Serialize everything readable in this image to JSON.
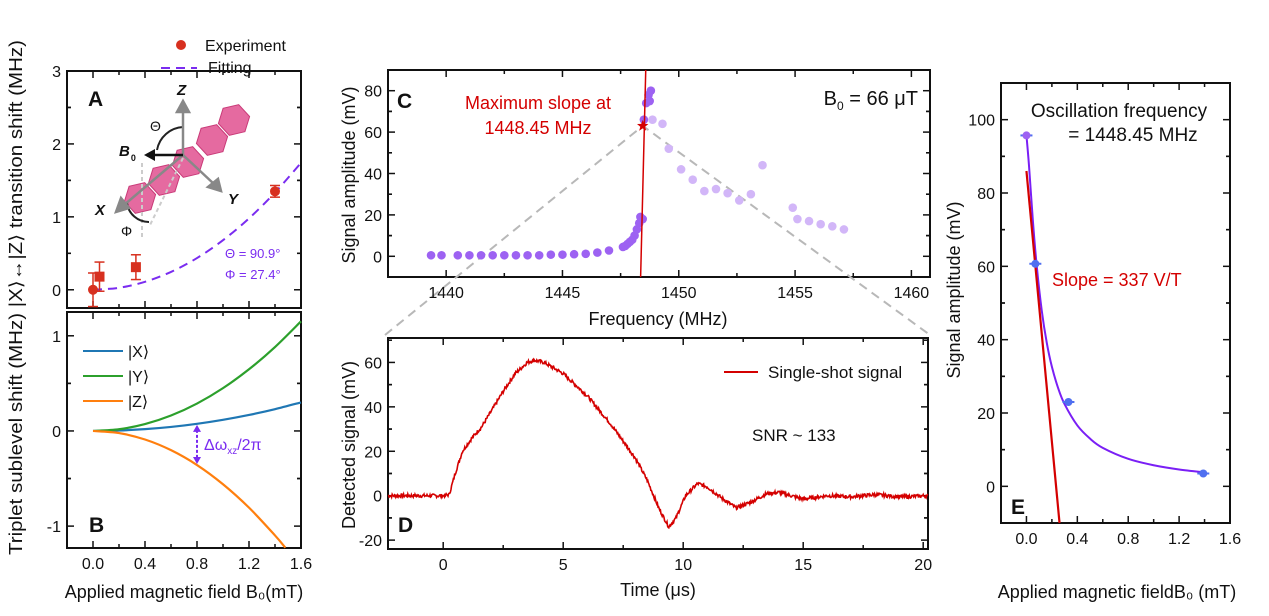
{
  "colors": {
    "experiment": "#d7301f",
    "fitting": "#7a2cf0",
    "X": "#1f77b4",
    "Y": "#2ca02c",
    "Z": "#ff7f0e",
    "slope_line": "#d40000",
    "points_dark": "#9d62f2",
    "points_light": "#d2b6f8",
    "fit_E": "#7a1ff5",
    "points_E": "#4f6ff0",
    "zoom_lines": "#b8b8b8",
    "molecule": "#e0508f"
  },
  "shared": {
    "ylabel_AB": "Triplet sublevel shift (MHz) |X⟩↔|Z⟩  transition shift (MHz)",
    "xlabel_AB": "Applied magnetic field B₀(mT)"
  },
  "chart_data": [
    {
      "id": "A",
      "panel_label": "A",
      "type": "scatter",
      "xlim": [
        -0.2,
        1.6
      ],
      "ylim": [
        -0.25,
        3
      ],
      "xticks": [
        0,
        0.4,
        0.8,
        1.2,
        1.6
      ],
      "xticklabels": [],
      "yticks": [
        0,
        1,
        2,
        3
      ],
      "yticklabels": [
        "0",
        "1",
        "2",
        "3"
      ],
      "legend": {
        "placement": "top",
        "entries": [
          "Experiment",
          "Fitting"
        ]
      },
      "series": [
        {
          "name": "Experiment",
          "kind": "points",
          "x": [
            0,
            0.05,
            0.33,
            1.4
          ],
          "y": [
            0,
            0.18,
            0.31,
            1.35
          ],
          "err": [
            0.23,
            0.2,
            0.17,
            0.08
          ],
          "marker": [
            "circle",
            "square",
            "square",
            "circle"
          ]
        },
        {
          "name": "Fitting",
          "kind": "dashed",
          "x": [
            0,
            0.2,
            0.4,
            0.6,
            0.8,
            1.0,
            1.2,
            1.4,
            1.6
          ],
          "y": [
            0,
            0.027,
            0.109,
            0.245,
            0.435,
            0.68,
            0.979,
            1.333,
            1.741
          ]
        }
      ],
      "annotations": {
        "theta": "Θ = 90.9°",
        "phi": "Φ = 27.4°"
      },
      "inset": {
        "Z": "Z",
        "Y": "Y",
        "X": "X",
        "B0": "B",
        "B0_sub": "0",
        "Theta": "Θ",
        "Phi": "Φ"
      }
    },
    {
      "id": "B",
      "panel_label": "B",
      "type": "line",
      "xlim": [
        -0.2,
        1.6
      ],
      "ylim": [
        -1.23,
        1.25
      ],
      "xticks": [
        0,
        0.4,
        0.8,
        1.2,
        1.6
      ],
      "xticklabels": [
        "0.0",
        "0.4",
        "0.8",
        "1.2",
        "1.6"
      ],
      "yticks": [
        -1,
        0,
        1
      ],
      "yticklabels": [
        "-1",
        "0",
        "1"
      ],
      "legend": {
        "placement": "top-left",
        "entries": [
          "|X⟩",
          "|Y⟩",
          "|Z⟩"
        ]
      },
      "series": [
        {
          "name": "|X⟩",
          "x": [
            0,
            0.2,
            0.4,
            0.6,
            0.8,
            1.0,
            1.2,
            1.4,
            1.6
          ],
          "y": [
            0,
            0.005,
            0.019,
            0.042,
            0.075,
            0.117,
            0.168,
            0.229,
            0.3
          ]
        },
        {
          "name": "|Y⟩",
          "x": [
            0,
            0.2,
            0.4,
            0.6,
            0.8,
            1.0,
            1.2,
            1.4,
            1.6
          ],
          "y": [
            0,
            0.018,
            0.072,
            0.162,
            0.288,
            0.45,
            0.648,
            0.882,
            1.152
          ]
        },
        {
          "name": "|Z⟩",
          "x": [
            0,
            0.2,
            0.4,
            0.6,
            0.8,
            1.0,
            1.2,
            1.4,
            1.48
          ],
          "y": [
            0,
            -0.022,
            -0.09,
            -0.202,
            -0.358,
            -0.56,
            -0.806,
            -1.098,
            -1.227
          ]
        }
      ],
      "annotation": {
        "text": "Δω",
        "sub": "xz",
        "tail": "/2π",
        "x": 0.8,
        "y_top": 0.075,
        "y_bottom": -0.358
      }
    },
    {
      "id": "C",
      "panel_label": "C",
      "type": "scatter",
      "xlim": [
        1437.5,
        1460.8
      ],
      "ylim": [
        -10,
        90
      ],
      "xticks": [
        1440,
        1445,
        1450,
        1455,
        1460
      ],
      "xticklabels": [
        "1440",
        "1445",
        "1450",
        "1455",
        "1460"
      ],
      "yticks": [
        0,
        20,
        40,
        60,
        80
      ],
      "yticklabels": [
        "0",
        "20",
        "40",
        "60",
        "80"
      ],
      "xlabel": "Frequency (MHz)",
      "ylabel": "Signal amplitude (mV)",
      "series": [
        {
          "kind": "dark",
          "x": [
            1439.35,
            1439.8,
            1440.5,
            1441,
            1441.5,
            1442,
            1442.5,
            1443,
            1443.5,
            1444,
            1444.5,
            1445,
            1445.5,
            1446,
            1446.5,
            1447,
            1447.6,
            1447.7,
            1447.8,
            1447.9,
            1448.0,
            1448.1,
            1448.2,
            1448.3,
            1448.35,
            1448.45,
            1448.5,
            1448.6,
            1448.7,
            1448.75,
            1448.8
          ],
          "y": [
            0.5,
            0.5,
            0.5,
            0.5,
            0.5,
            0.5,
            0.5,
            0.5,
            0.5,
            0.5,
            0.8,
            0.8,
            1,
            1.2,
            1.8,
            2.8,
            4.5,
            5,
            6,
            7,
            8,
            10,
            13,
            16,
            19,
            18,
            66,
            74,
            78,
            75,
            80
          ]
        },
        {
          "kind": "light",
          "x": [
            1448.87,
            1449.3,
            1449.57,
            1450.1,
            1450.6,
            1451.1,
            1451.6,
            1452.1,
            1452.6,
            1453.1,
            1453.6,
            1454.9,
            1455.1,
            1455.6,
            1456.1,
            1456.6,
            1457.1
          ],
          "y": [
            66,
            64,
            52,
            42,
            37,
            31.5,
            32.5,
            30.5,
            27,
            30,
            44,
            23.5,
            18,
            17,
            15.5,
            14.5,
            13
          ]
        }
      ],
      "max_slope": {
        "x": 1448.45,
        "y": 63,
        "line": [
          [
            1448.58,
            90
          ],
          [
            1448.36,
            -10
          ]
        ]
      },
      "annotations": {
        "max_slope_1": "Maximum slope at",
        "max_slope_2": "1448.45 MHz",
        "field": "B",
        "field_sub": "0",
        "field_tail": " = 66 μT"
      }
    },
    {
      "id": "D",
      "panel_label": "D",
      "type": "line",
      "xlim": [
        -2.3,
        20.2
      ],
      "ylim": [
        -24,
        71
      ],
      "xticks": [
        0,
        5,
        10,
        15,
        20
      ],
      "xticklabels": [
        "0",
        "5",
        "10",
        "15",
        "20"
      ],
      "yticks": [
        -20,
        0,
        20,
        40,
        60
      ],
      "yticklabels": [
        "-20",
        "0",
        "20",
        "40",
        "60"
      ],
      "xlabel": "Time (μs)",
      "ylabel": "Detected signal (mV)",
      "legend": {
        "placement": "top-right",
        "entries": [
          "Single-shot signal"
        ]
      },
      "series": [
        {
          "name": "Single-shot signal",
          "x": [
            -2.3,
            0,
            0.25,
            0.5,
            0.8,
            1.2,
            1.6,
            2,
            2.5,
            3,
            3.5,
            3.8,
            4.2,
            5,
            6,
            7,
            8,
            8.5,
            9,
            9.4,
            9.7,
            10.1,
            10.6,
            11,
            11.6,
            12.2,
            12.8,
            13.5,
            14,
            14.5,
            15,
            16,
            17,
            18,
            19,
            20.2
          ],
          "y": [
            0,
            0,
            0.5,
            10,
            20,
            26,
            31,
            38,
            47,
            55,
            60,
            61,
            60,
            55,
            45,
            32,
            17,
            7,
            -6,
            -14,
            -10,
            0,
            5.5,
            4,
            -1,
            -5.5,
            -3,
            1,
            1.5,
            0,
            -1.5,
            0,
            -0.5,
            0.5,
            -0.5,
            0
          ]
        }
      ],
      "annotations": {
        "snr": "SNR ~ 133"
      }
    },
    {
      "id": "E",
      "panel_label": "E",
      "type": "scatter",
      "xlim": [
        -0.2,
        1.6
      ],
      "ylim": [
        -10,
        110
      ],
      "xticks": [
        0,
        0.4,
        0.8,
        1.2,
        1.6
      ],
      "xticklabels": [
        "0.0",
        "0.4",
        "0.8",
        "1.2",
        "1.6"
      ],
      "yticks": [
        0,
        20,
        40,
        60,
        80,
        100
      ],
      "yticklabels": [
        "0",
        "20",
        "40",
        "60",
        "80",
        "100"
      ],
      "xlabel": "Applied magnetic fieldB₀ (mT)",
      "ylabel": "Signal amplitude (mV)",
      "points": {
        "x": [
          0,
          0.07,
          0.33,
          1.39
        ],
        "y": [
          95.7,
          60.7,
          23,
          3.5
        ]
      },
      "fit": {
        "x": [
          0,
          0.02,
          0.05,
          0.08,
          0.12,
          0.16,
          0.2,
          0.25,
          0.3,
          0.4,
          0.5,
          0.6,
          0.8,
          1.0,
          1.2,
          1.4
        ],
        "y": [
          95.7,
          87.5,
          72.7,
          60.4,
          48,
          39.1,
          32.6,
          26.7,
          22.4,
          16.6,
          13,
          10.5,
          7.5,
          5.75,
          4.6,
          3.8
        ]
      },
      "slope_line": [
        [
          0,
          86
        ],
        [
          0.26,
          -10
        ]
      ],
      "annotations": {
        "osc_1": "Oscillation frequency",
        "osc_2": "= 1448.45 MHz",
        "slope": "Slope = 337 V/T"
      }
    }
  ]
}
